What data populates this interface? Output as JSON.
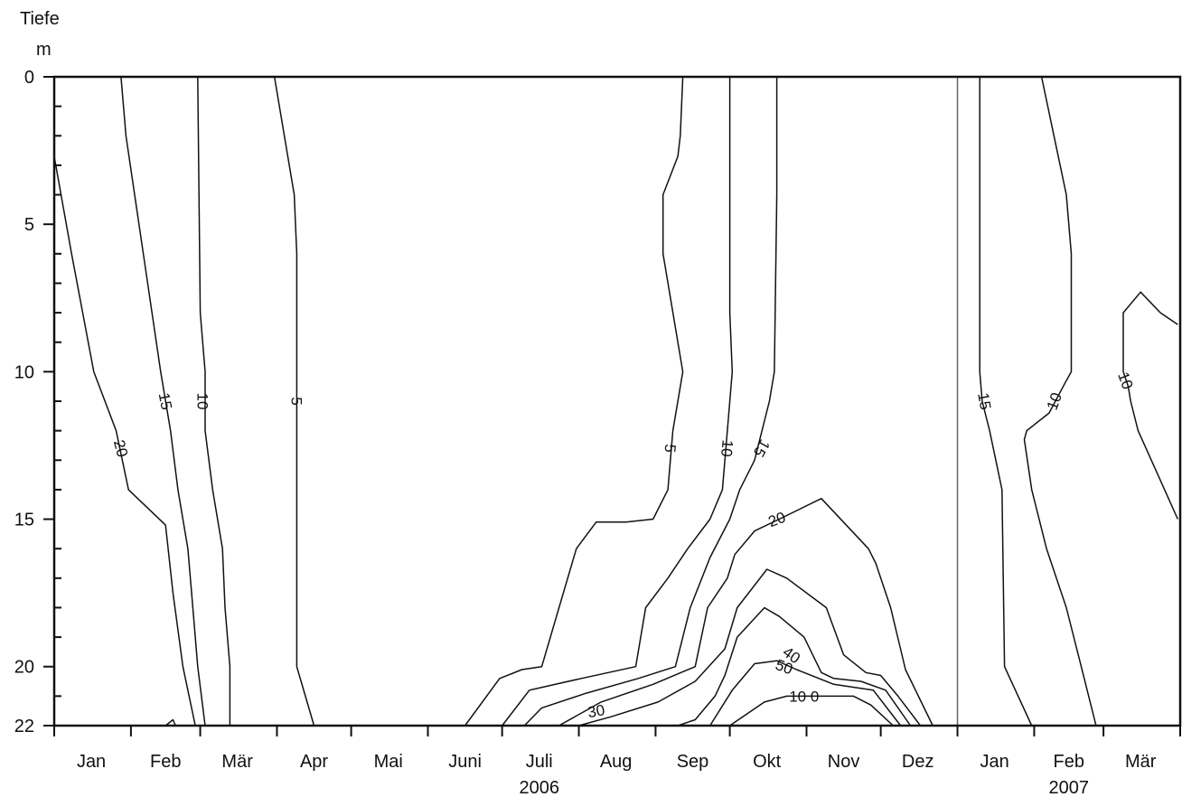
{
  "chart_data": {
    "type": "contour",
    "ylabel": "Tiefe",
    "yunit": "m",
    "ylim": [
      0,
      22
    ],
    "y_inverted": true,
    "yticks": [
      0,
      5,
      10,
      15,
      20,
      22
    ],
    "yticks_minor": [
      1,
      2,
      3,
      4,
      6,
      7,
      8,
      9,
      11,
      12,
      13,
      14,
      16,
      17,
      18,
      19,
      21
    ],
    "xlim": [
      "2006-01-01",
      "2007-04-01"
    ],
    "year_divider": "2007-01-01",
    "months": [
      {
        "label": "Jan",
        "mid": "2006-01-16"
      },
      {
        "label": "Feb",
        "mid": "2006-02-15"
      },
      {
        "label": "Mär",
        "mid": "2006-03-16"
      },
      {
        "label": "Apr",
        "mid": "2006-04-16"
      },
      {
        "label": "Mai",
        "mid": "2006-05-16"
      },
      {
        "label": "Juni",
        "mid": "2006-06-16"
      },
      {
        "label": "Juli",
        "mid": "2006-07-16"
      },
      {
        "label": "Aug",
        "mid": "2006-08-16"
      },
      {
        "label": "Sep",
        "mid": "2006-09-16"
      },
      {
        "label": "Okt",
        "mid": "2006-10-16"
      },
      {
        "label": "Nov",
        "mid": "2006-11-16"
      },
      {
        "label": "Dez",
        "mid": "2006-12-16"
      },
      {
        "label": "Jan",
        "mid": "2007-01-16"
      },
      {
        "label": "Feb",
        "mid": "2007-02-15"
      },
      {
        "label": "Mär",
        "mid": "2007-03-16"
      }
    ],
    "month_boundaries": [
      "2006-01-01",
      "2006-02-01",
      "2006-03-01",
      "2006-04-01",
      "2006-05-01",
      "2006-06-01",
      "2006-07-01",
      "2006-08-01",
      "2006-09-01",
      "2006-10-01",
      "2006-11-01",
      "2006-12-01",
      "2007-01-01",
      "2007-02-01",
      "2007-03-01",
      "2007-04-01"
    ],
    "years": [
      {
        "label": "2006",
        "mid": "2006-07-16"
      },
      {
        "label": "2007",
        "mid": "2007-02-15"
      }
    ],
    "contours": [
      {
        "level": 20,
        "points": [
          [
            "2006-01-01",
            2.7
          ],
          [
            "2006-01-08",
            6
          ],
          [
            "2006-01-17",
            10
          ],
          [
            "2006-01-26",
            12
          ],
          [
            "2006-01-31",
            14
          ],
          [
            "2006-02-15",
            15.2
          ],
          [
            "2006-02-18",
            17.5
          ],
          [
            "2006-02-22",
            20
          ],
          [
            "2006-02-27",
            22
          ]
        ]
      },
      {
        "level": 15,
        "points": [
          [
            "2006-01-28",
            0
          ],
          [
            "2006-01-30",
            2
          ],
          [
            "2006-02-06",
            6
          ],
          [
            "2006-02-13",
            10
          ],
          [
            "2006-02-17",
            12
          ],
          [
            "2006-02-20",
            14
          ],
          [
            "2006-02-24",
            16
          ],
          [
            "2006-02-26",
            18
          ],
          [
            "2006-02-28",
            20
          ],
          [
            "2006-03-03",
            22
          ]
        ]
      },
      {
        "level": 10,
        "points": [
          [
            "2006-02-28",
            0
          ],
          [
            "2006-03-01",
            8
          ],
          [
            "2006-03-03",
            10
          ],
          [
            "2006-03-03",
            12
          ],
          [
            "2006-03-06",
            14
          ],
          [
            "2006-03-10",
            16
          ],
          [
            "2006-03-11",
            18
          ],
          [
            "2006-03-13",
            20
          ],
          [
            "2006-03-13",
            22
          ]
        ]
      },
      {
        "level": 5,
        "points": [
          [
            "2006-03-31",
            0
          ],
          [
            "2006-04-08",
            4
          ],
          [
            "2006-04-09",
            6
          ],
          [
            "2006-04-09",
            12
          ],
          [
            "2006-04-09",
            20
          ],
          [
            "2006-04-16",
            22
          ]
        ]
      },
      {
        "level": 5,
        "points": [
          [
            "2006-09-12",
            0
          ],
          [
            "2006-09-11",
            2
          ],
          [
            "2006-09-10",
            2.7
          ],
          [
            "2006-09-04",
            4
          ],
          [
            "2006-09-04",
            6
          ],
          [
            "2006-09-12",
            10
          ],
          [
            "2006-09-08",
            12
          ],
          [
            "2006-09-06",
            14
          ],
          [
            "2006-08-31",
            15
          ],
          [
            "2006-08-20",
            15.1
          ],
          [
            "2006-08-08",
            15.1
          ],
          [
            "2006-07-31",
            16
          ],
          [
            "2006-07-24",
            18
          ],
          [
            "2006-07-17",
            20
          ],
          [
            "2006-07-09",
            20.1
          ],
          [
            "2006-06-30",
            20.4
          ],
          [
            "2006-06-16",
            22
          ]
        ]
      },
      {
        "level": 10,
        "points": [
          [
            "2006-10-01",
            0
          ],
          [
            "2006-10-01",
            8
          ],
          [
            "2006-10-02",
            10
          ],
          [
            "2006-09-30",
            12
          ],
          [
            "2006-09-28",
            14
          ],
          [
            "2006-09-23",
            15
          ],
          [
            "2006-09-14",
            16
          ],
          [
            "2006-09-06",
            17
          ],
          [
            "2006-08-28",
            18
          ],
          [
            "2006-08-24",
            20
          ],
          [
            "2006-08-02",
            20.4
          ],
          [
            "2006-07-12",
            20.8
          ],
          [
            "2006-07-01",
            22
          ]
        ]
      },
      {
        "level": 15,
        "points": [
          [
            "2006-10-20",
            0
          ],
          [
            "2006-10-20",
            4
          ],
          [
            "2006-10-19",
            10
          ],
          [
            "2006-10-17",
            11
          ],
          [
            "2006-10-11",
            13
          ],
          [
            "2006-10-05",
            14
          ],
          [
            "2006-10-01",
            15
          ],
          [
            "2006-09-23",
            16.3
          ],
          [
            "2006-09-15",
            18
          ],
          [
            "2006-09-09",
            20
          ],
          [
            "2006-08-25",
            20.4
          ],
          [
            "2006-08-04",
            20.9
          ],
          [
            "2006-07-17",
            21.4
          ],
          [
            "2006-07-10",
            22
          ]
        ]
      },
      {
        "level": 20,
        "points": [
          [
            "2006-12-22",
            22
          ],
          [
            "2006-12-11",
            20.1
          ],
          [
            "2006-12-05",
            18
          ],
          [
            "2006-11-29",
            16.5
          ],
          [
            "2006-11-26",
            16
          ],
          [
            "2006-11-07",
            14.3
          ],
          [
            "2006-10-21",
            15
          ],
          [
            "2006-10-11",
            15.4
          ],
          [
            "2006-10-03",
            16.2
          ],
          [
            "2006-09-30",
            17
          ],
          [
            "2006-09-22",
            18
          ],
          [
            "2006-09-17",
            20
          ],
          [
            "2006-08-31",
            20.6
          ],
          [
            "2006-08-10",
            21.2
          ],
          [
            "2006-07-24",
            22
          ]
        ]
      },
      {
        "level": 30,
        "points": [
          [
            "2006-12-17",
            22
          ],
          [
            "2006-12-08",
            21
          ],
          [
            "2006-12-01",
            20.3
          ],
          [
            "2006-11-25",
            20.2
          ],
          [
            "2006-11-16",
            19.6
          ],
          [
            "2006-11-09",
            18
          ],
          [
            "2006-10-24",
            17
          ],
          [
            "2006-10-16",
            16.7
          ],
          [
            "2006-10-04",
            18
          ],
          [
            "2006-09-29",
            19.4
          ],
          [
            "2006-09-17",
            20.5
          ],
          [
            "2006-09-02",
            21.2
          ],
          [
            "2006-08-14",
            21.7
          ],
          [
            "2006-08-01",
            22
          ]
        ]
      },
      {
        "level": 40,
        "points": [
          [
            "2006-12-13",
            22
          ],
          [
            "2006-12-03",
            20.8
          ],
          [
            "2006-11-23",
            20.5
          ],
          [
            "2006-11-12",
            20.4
          ],
          [
            "2006-11-07",
            20.2
          ],
          [
            "2006-10-31",
            19
          ],
          [
            "2006-10-21",
            18.3
          ],
          [
            "2006-10-15",
            18
          ],
          [
            "2006-10-04",
            19
          ],
          [
            "2006-09-29",
            20.3
          ],
          [
            "2006-09-25",
            21
          ],
          [
            "2006-09-17",
            21.8
          ],
          [
            "2006-09-10",
            22
          ]
        ]
      },
      {
        "level": 50,
        "points": [
          [
            "2006-12-09",
            22
          ],
          [
            "2006-11-28",
            20.8
          ],
          [
            "2006-11-12",
            20.6
          ],
          [
            "2006-10-28",
            20.1
          ],
          [
            "2006-10-20",
            19.8
          ],
          [
            "2006-10-11",
            19.9
          ],
          [
            "2006-10-02",
            20.8
          ],
          [
            "2006-09-23",
            22
          ]
        ]
      },
      {
        "level": 100,
        "points": [
          [
            "2006-10-01",
            22
          ],
          [
            "2006-10-15",
            21.2
          ],
          [
            "2006-10-24",
            21.0
          ],
          [
            "2006-11-07",
            21.0
          ],
          [
            "2006-11-20",
            21.0
          ],
          [
            "2006-11-27",
            21.3
          ],
          [
            "2006-12-06",
            22
          ]
        ]
      },
      {
        "level": 20,
        "points": [
          [
            "2006-02-15",
            22
          ],
          [
            "2006-02-18",
            21.8
          ],
          [
            "2006-02-19",
            22
          ]
        ]
      },
      {
        "level": 15,
        "points": [
          [
            "2007-01-10",
            0
          ],
          [
            "2007-01-10",
            10
          ],
          [
            "2007-01-11",
            11
          ],
          [
            "2007-01-14",
            12
          ],
          [
            "2007-01-19",
            14
          ],
          [
            "2007-01-20",
            20
          ],
          [
            "2007-01-31",
            22
          ]
        ]
      },
      {
        "level": 10,
        "points": [
          [
            "2007-02-04",
            0
          ],
          [
            "2007-02-09",
            2
          ],
          [
            "2007-02-14",
            4
          ],
          [
            "2007-02-16",
            6
          ],
          [
            "2007-02-16",
            10
          ],
          [
            "2007-02-14",
            10.3
          ],
          [
            "2007-02-07",
            11.4
          ],
          [
            "2007-01-29",
            12
          ],
          [
            "2007-01-28",
            12.3
          ],
          [
            "2007-01-31",
            14
          ],
          [
            "2007-02-06",
            16
          ],
          [
            "2007-02-14",
            18
          ],
          [
            "2007-02-20",
            20
          ],
          [
            "2007-02-26",
            22
          ]
        ]
      },
      {
        "level": 10,
        "points": [
          [
            "2007-03-31",
            15
          ],
          [
            "2007-03-23",
            13.5
          ],
          [
            "2007-03-15",
            12
          ],
          [
            "2007-03-12",
            11
          ],
          [
            "2007-03-11",
            10.5
          ],
          [
            "2007-03-09",
            10
          ],
          [
            "2007-03-09",
            8
          ],
          [
            "2007-03-16",
            7.3
          ],
          [
            "2007-03-24",
            8
          ],
          [
            "2007-03-31",
            8.4
          ]
        ]
      }
    ],
    "contour_labels": [
      {
        "text": "20",
        "x": "2006-01-28",
        "y": 12.6,
        "angle": 75
      },
      {
        "text": "15",
        "x": "2006-02-15",
        "y": 11.0,
        "angle": 80
      },
      {
        "text": "10",
        "x": "2006-03-02",
        "y": 11.0,
        "angle": 90
      },
      {
        "text": "5",
        "x": "2006-04-09",
        "y": 11.0,
        "angle": 90
      },
      {
        "text": "5",
        "x": "2006-09-07",
        "y": 12.6,
        "angle": 95
      },
      {
        "text": "10",
        "x": "2006-09-30",
        "y": 12.6,
        "angle": 95
      },
      {
        "text": "15",
        "x": "2006-10-14",
        "y": 12.6,
        "angle": 120
      },
      {
        "text": "20",
        "x": "2006-10-20",
        "y": 15.0,
        "angle": -20
      },
      {
        "text": "30",
        "x": "2006-08-08",
        "y": 21.5,
        "angle": -10
      },
      {
        "text": "40",
        "x": "2006-10-26",
        "y": 19.6,
        "angle": 35
      },
      {
        "text": "50",
        "x": "2006-10-23",
        "y": 20.0,
        "angle": 20
      },
      {
        "text": "10 0",
        "x": "2006-10-31",
        "y": 21.0,
        "angle": 0
      },
      {
        "text": "15",
        "x": "2007-01-12",
        "y": 11.0,
        "angle": 80
      },
      {
        "text": "10",
        "x": "2007-02-09",
        "y": 11.0,
        "angle": -70
      },
      {
        "text": "10",
        "x": "2007-03-10",
        "y": 10.3,
        "angle": 70
      }
    ]
  }
}
